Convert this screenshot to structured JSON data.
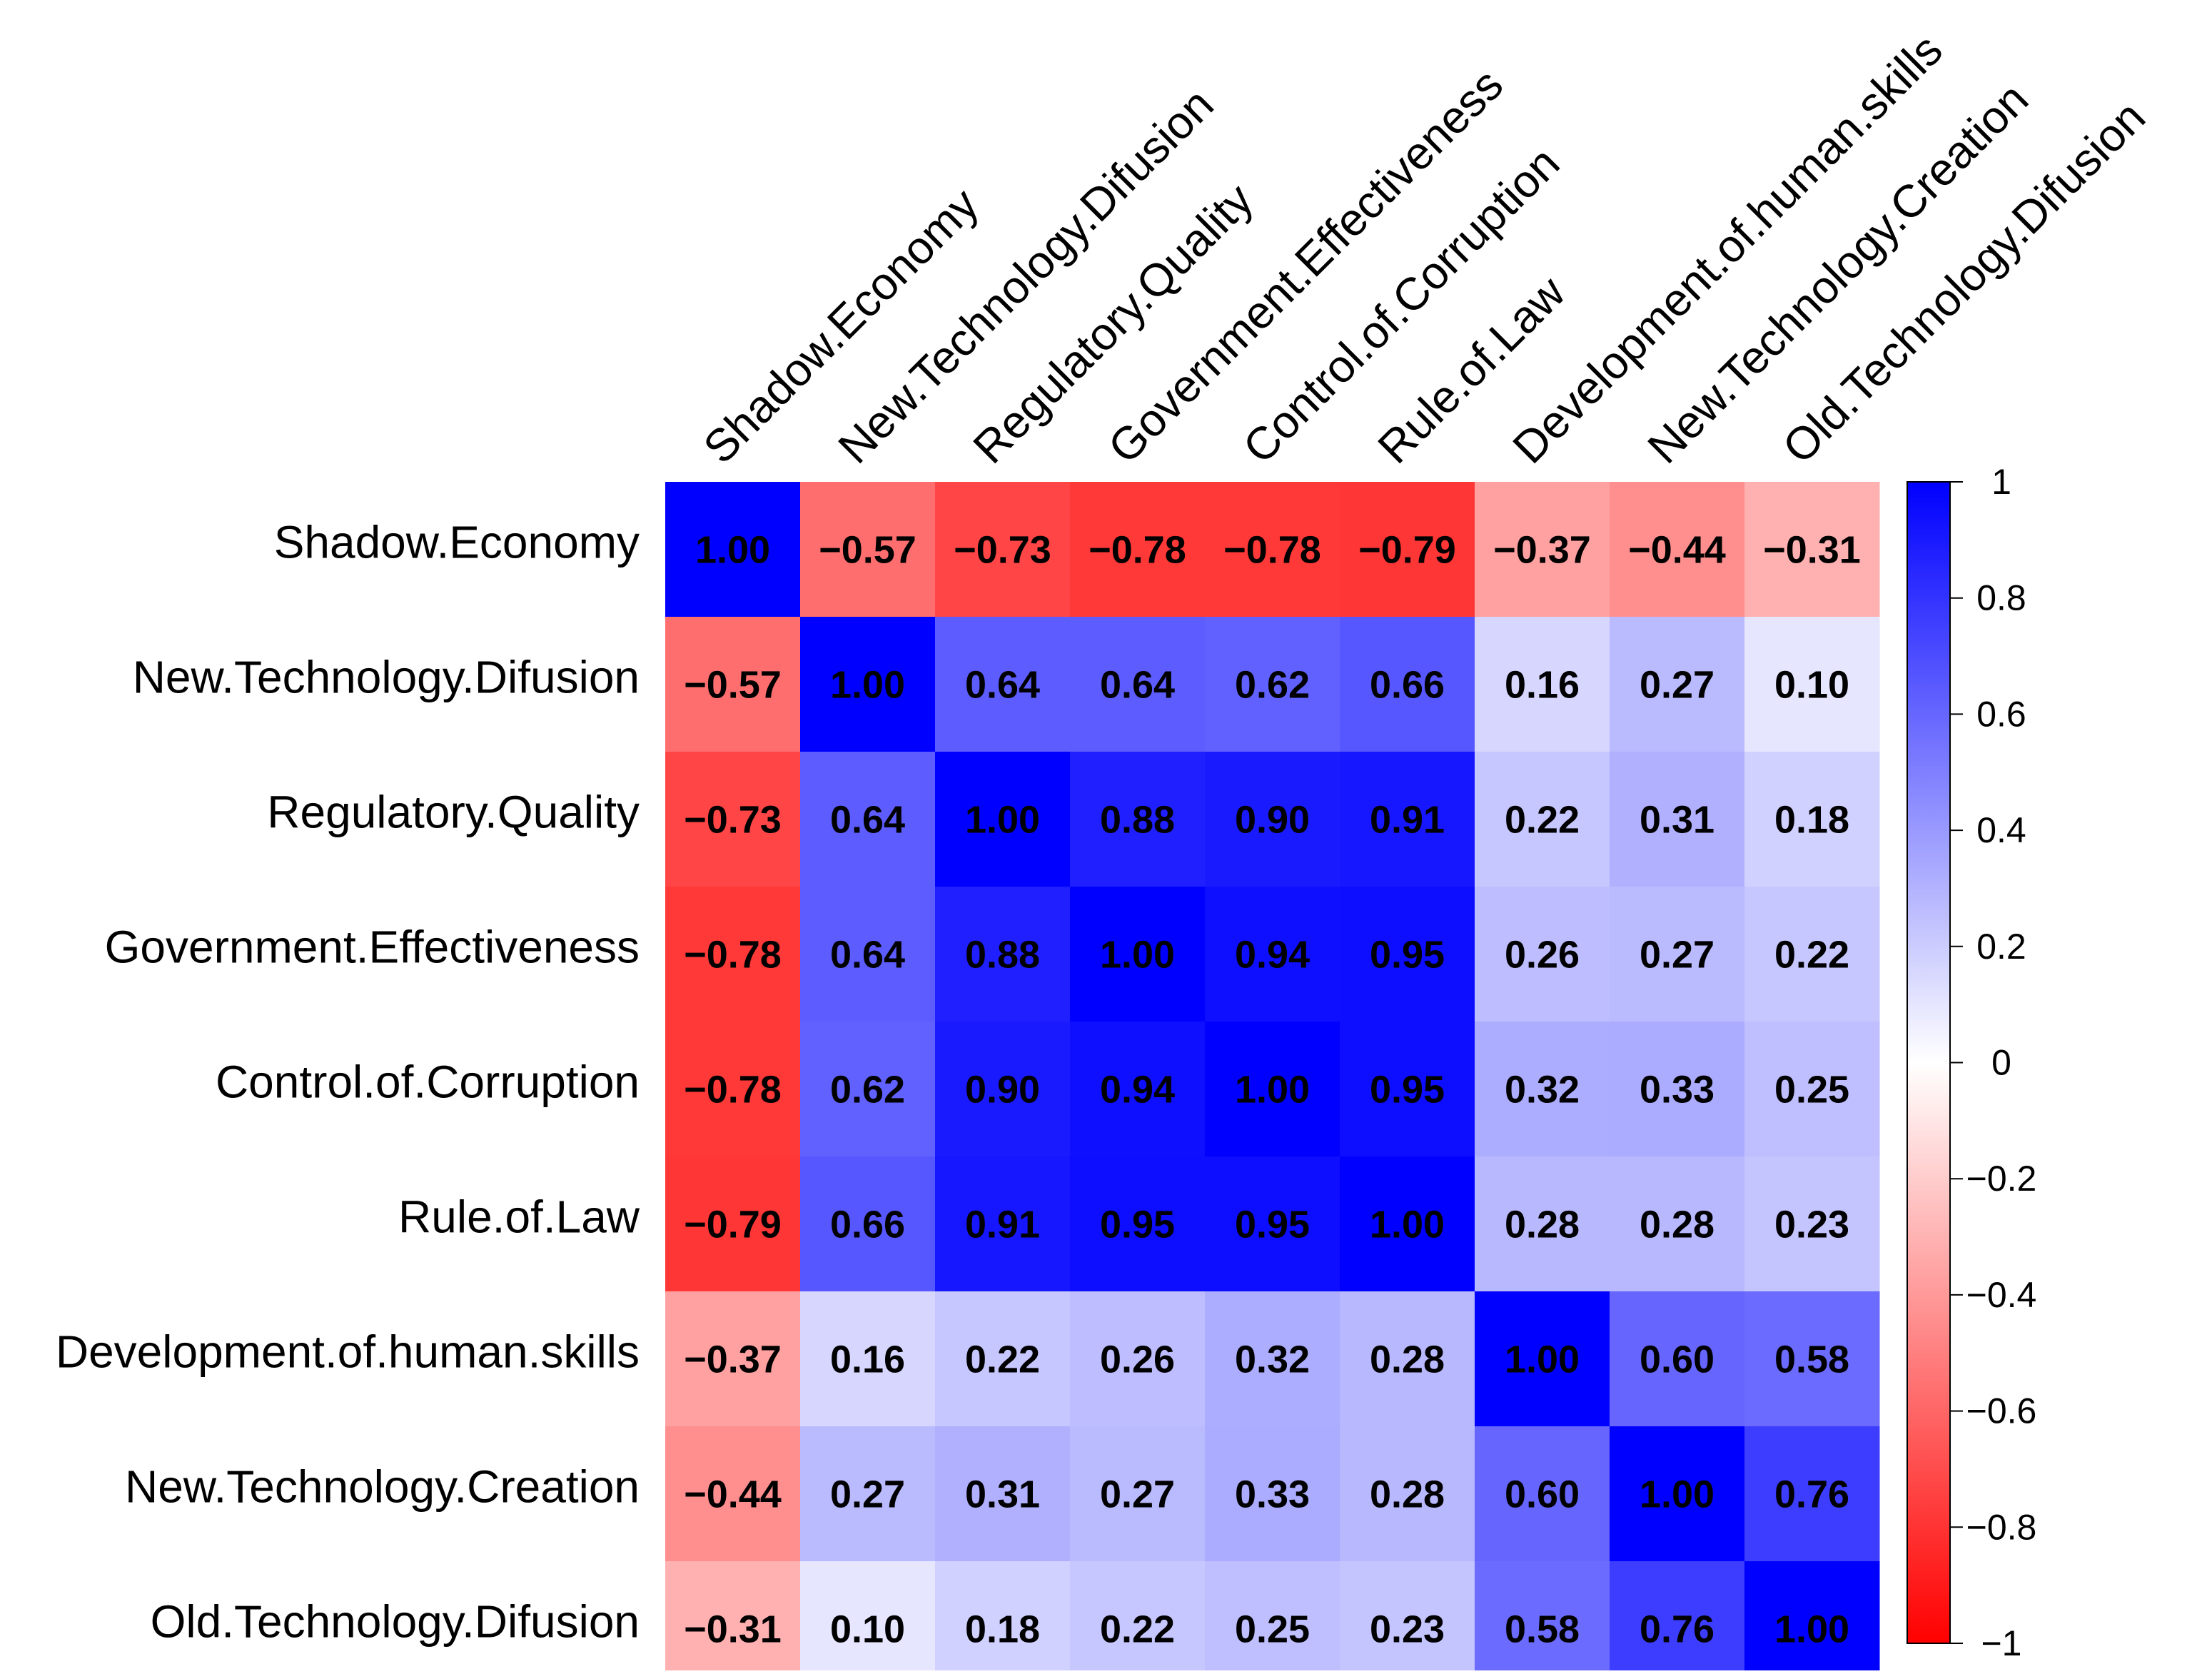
{
  "chart_data": {
    "type": "heatmap",
    "title": "",
    "xlabel": "",
    "ylabel": "",
    "variables": [
      "Shadow.Economy",
      "New.Technology.Difusion",
      "Regulatory.Quality",
      "Government.Effectiveness",
      "Control.of.Corruption",
      "Rule.of.Law",
      "Development.of.human.skills",
      "New.Technology.Creation",
      "Old.Technology.Difusion"
    ],
    "matrix": [
      [
        1.0,
        -0.57,
        -0.73,
        -0.78,
        -0.78,
        -0.79,
        -0.37,
        -0.44,
        -0.31
      ],
      [
        -0.57,
        1.0,
        0.64,
        0.64,
        0.62,
        0.66,
        0.16,
        0.27,
        0.1
      ],
      [
        -0.73,
        0.64,
        1.0,
        0.88,
        0.9,
        0.91,
        0.22,
        0.31,
        0.18
      ],
      [
        -0.78,
        0.64,
        0.88,
        1.0,
        0.94,
        0.95,
        0.26,
        0.27,
        0.22
      ],
      [
        -0.78,
        0.62,
        0.9,
        0.94,
        1.0,
        0.95,
        0.32,
        0.33,
        0.25
      ],
      [
        -0.79,
        0.66,
        0.91,
        0.95,
        0.95,
        1.0,
        0.28,
        0.28,
        0.23
      ],
      [
        -0.37,
        0.16,
        0.22,
        0.26,
        0.32,
        0.28,
        1.0,
        0.6,
        0.58
      ],
      [
        -0.44,
        0.27,
        0.31,
        0.27,
        0.33,
        0.28,
        0.6,
        1.0,
        0.76
      ],
      [
        -0.31,
        0.1,
        0.18,
        0.22,
        0.25,
        0.23,
        0.58,
        0.76,
        1.0
      ]
    ],
    "value_labels": [
      [
        "1.00",
        "−0.57",
        "−0.73",
        "−0.78",
        "−0.78",
        "−0.79",
        "−0.37",
        "−0.44",
        "−0.31"
      ],
      [
        "−0.57",
        "1.00",
        "0.64",
        "0.64",
        "0.62",
        "0.66",
        "0.16",
        "0.27",
        "0.10"
      ],
      [
        "−0.73",
        "0.64",
        "1.00",
        "0.88",
        "0.90",
        "0.91",
        "0.22",
        "0.31",
        "0.18"
      ],
      [
        "−0.78",
        "0.64",
        "0.88",
        "1.00",
        "0.94",
        "0.95",
        "0.26",
        "0.27",
        "0.22"
      ],
      [
        "−0.78",
        "0.62",
        "0.90",
        "0.94",
        "1.00",
        "0.95",
        "0.32",
        "0.33",
        "0.25"
      ],
      [
        "−0.79",
        "0.66",
        "0.91",
        "0.95",
        "0.95",
        "1.00",
        "0.28",
        "0.28",
        "0.23"
      ],
      [
        "−0.37",
        "0.16",
        "0.22",
        "0.26",
        "0.32",
        "0.28",
        "1.00",
        "0.60",
        "0.58"
      ],
      [
        "−0.44",
        "0.27",
        "0.31",
        "0.27",
        "0.33",
        "0.28",
        "0.60",
        "1.00",
        "0.76"
      ],
      [
        "−0.31",
        "0.10",
        "0.18",
        "0.22",
        "0.25",
        "0.23",
        "0.58",
        "0.76",
        "1.00"
      ]
    ],
    "colorbar": {
      "range": [
        -1,
        1
      ],
      "ticks": [
        1,
        0.8,
        0.6,
        0.4,
        0.2,
        0,
        -0.2,
        -0.4,
        -0.6,
        -0.8,
        -1
      ],
      "tick_labels": [
        "1",
        "0.8",
        "0.6",
        "0.4",
        "0.2",
        "0",
        "−0.2",
        "−0.4",
        "−0.6",
        "−0.8",
        "−1"
      ],
      "placement": "right"
    },
    "colors": {
      "positive": "#0000FF",
      "zero": "#FFFFFF",
      "negative": "#FF0000"
    }
  }
}
